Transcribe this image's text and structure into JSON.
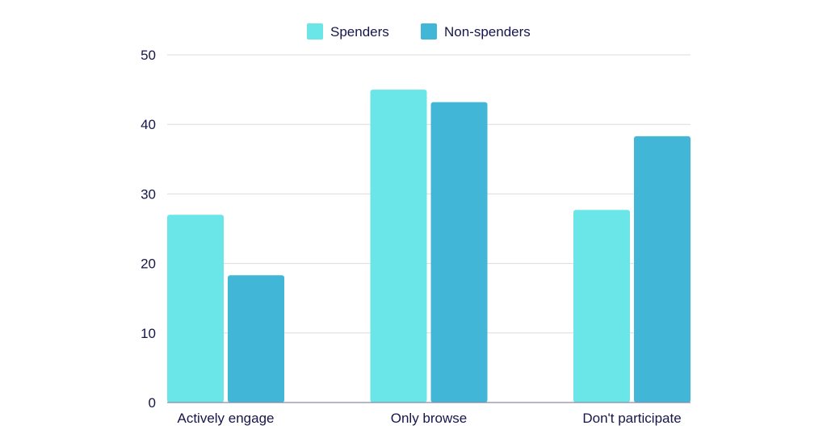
{
  "chart_data": {
    "type": "bar",
    "categories": [
      "Actively engage",
      "Only browse",
      "Don't participate"
    ],
    "series": [
      {
        "name": "Spenders",
        "values": [
          27,
          45,
          27.7
        ],
        "color": "#6ae5e8"
      },
      {
        "name": "Non-spenders",
        "values": [
          18.3,
          43.2,
          38.3
        ],
        "color": "#42b6d6"
      }
    ],
    "ylim": [
      0,
      50
    ],
    "yticks": [
      0,
      10,
      20,
      30,
      40,
      50
    ],
    "grid": true,
    "legend": "top-center",
    "title": "",
    "xlabel": "",
    "ylabel": "",
    "colors": {
      "text": "#16164a",
      "grid": "#d9dbe3",
      "axis": "#8a8aa6"
    }
  }
}
